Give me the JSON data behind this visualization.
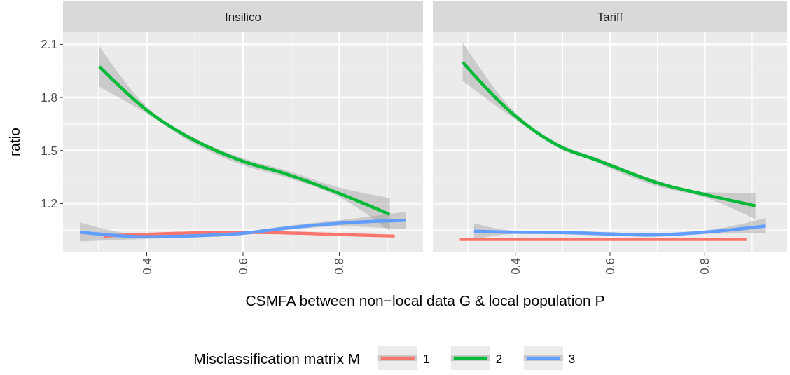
{
  "chart_data": [
    {
      "type": "line",
      "title": "Insilico",
      "xlabel": "CSMFA between non−local data G & local population P",
      "ylabel": "ratio",
      "legend_title": "Misclassification matrix M",
      "legend": "bottom",
      "grid": true,
      "xlim": [
        0.226,
        0.974
      ],
      "ylim": [
        0.924,
        2.173
      ],
      "xticks": [
        0.4,
        0.6,
        0.8
      ],
      "yticks": [
        1.2,
        1.5,
        1.8,
        2.1
      ],
      "series": [
        {
          "name": "1",
          "color": "#f8766d",
          "x": [
            0.31,
            0.6,
            0.8,
            0.915
          ],
          "values": [
            1.016,
            1.038,
            1.025,
            1.016
          ]
        },
        {
          "name": "2",
          "color": "#00ba38",
          "x": [
            0.3015,
            0.4,
            0.5,
            0.6,
            0.687,
            0.8,
            0.905
          ],
          "values": [
            1.974,
            1.728,
            1.556,
            1.439,
            1.37,
            1.257,
            1.138
          ],
          "lower": [
            1.861,
            1.709,
            1.536,
            1.417,
            1.35,
            1.237,
            1.045
          ],
          "upper": [
            2.089,
            1.748,
            1.569,
            1.456,
            1.39,
            1.291,
            1.231
          ]
        },
        {
          "name": "3",
          "color": "#619cff",
          "x": [
            0.261,
            0.4,
            0.5,
            0.6,
            0.7,
            0.8,
            0.939
          ],
          "values": [
            1.038,
            1.012,
            1.018,
            1.032,
            1.065,
            1.089,
            1.105
          ],
          "lower": [
            0.985,
            1.0,
            1.008,
            1.022,
            1.053,
            1.072,
            1.054
          ],
          "upper": [
            1.094,
            1.024,
            1.028,
            1.042,
            1.077,
            1.105,
            1.154
          ]
        }
      ]
    },
    {
      "type": "line",
      "title": "Tariff",
      "xlim": [
        0.226,
        0.974
      ],
      "ylim": [
        0.924,
        2.173
      ],
      "xticks": [
        0.4,
        0.6,
        0.8
      ],
      "grid": true,
      "tick_labels": "x",
      "series": [
        {
          "name": "1",
          "color": "#f8766d",
          "x": [
            0.283,
            0.6,
            0.888
          ],
          "values": [
            0.997,
            0.997,
            0.997
          ]
        },
        {
          "name": "2",
          "color": "#00ba38",
          "x": [
            0.289,
            0.4,
            0.5,
            0.566,
            0.6,
            0.7,
            0.8,
            0.907
          ],
          "values": [
            2.0,
            1.695,
            1.516,
            1.452,
            1.417,
            1.317,
            1.251,
            1.187
          ],
          "lower": [
            1.894,
            1.675,
            1.503,
            1.44,
            1.399,
            1.297,
            1.235,
            1.111
          ],
          "upper": [
            2.111,
            1.715,
            1.529,
            1.465,
            1.43,
            1.33,
            1.264,
            1.261
          ]
        },
        {
          "name": "3",
          "color": "#619cff",
          "x": [
            0.313,
            0.4,
            0.5,
            0.6,
            0.68,
            0.8,
            0.929
          ],
          "values": [
            1.044,
            1.038,
            1.036,
            1.028,
            1.022,
            1.038,
            1.074
          ],
          "lower": [
            0.996,
            1.028,
            1.026,
            1.018,
            1.012,
            1.028,
            1.032
          ],
          "upper": [
            1.089,
            1.048,
            1.046,
            1.038,
            1.032,
            1.048,
            1.118
          ]
        }
      ]
    }
  ]
}
